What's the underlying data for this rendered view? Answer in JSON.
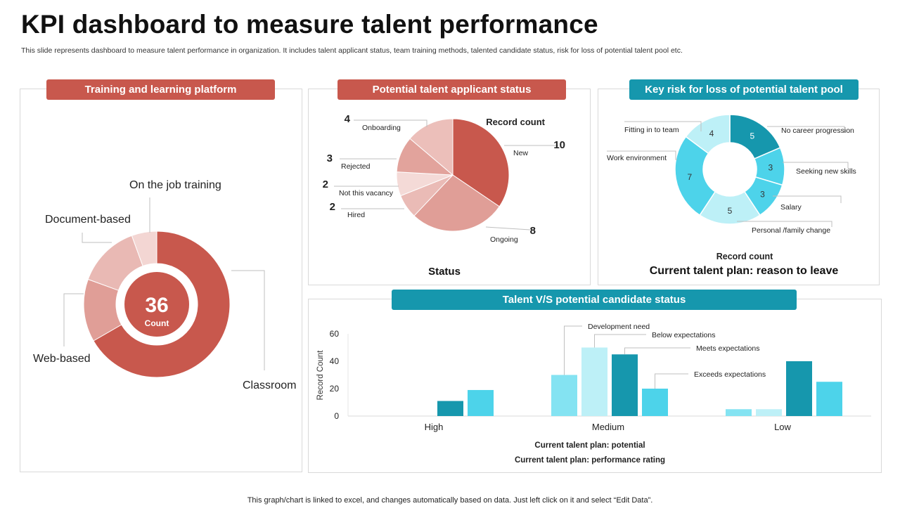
{
  "page": {
    "title": "KPI dashboard to measure talent performance",
    "subtitle": "This slide represents dashboard to measure talent performance in organization. It includes talent applicant status, team training methods, talented candidate status, risk for loss of potential talent pool etc.",
    "footer": "This graph/chart is linked to excel,  and changes automatically based on data. Just left click on it and select “Edit Data”."
  },
  "colors": {
    "red": "#c8584d",
    "teal": "#1697ad",
    "red_shades": [
      "#c8584d",
      "#e09e97",
      "#e9b9b4",
      "#f3d6d3"
    ],
    "teal_shades": [
      "#1697ad",
      "#4dd3ea",
      "#bdf0f7",
      "#84e3f2"
    ]
  },
  "panels": {
    "training": {
      "header": "Training and learning platform"
    },
    "applicant": {
      "header": "Potential talent applicant status"
    },
    "risk": {
      "header": "Key risk for loss of potential talent pool"
    },
    "candidate": {
      "header": "Talent V/S potential candidate status"
    }
  },
  "chart_data": [
    {
      "id": "training",
      "type": "pie",
      "style": "donut",
      "center_value": "36",
      "center_label": "Count",
      "slices": [
        {
          "label": "Classroom",
          "value": 24
        },
        {
          "label": "Web-based",
          "value": 5
        },
        {
          "label": "Document-based",
          "value": 5
        },
        {
          "label": "On the job training",
          "value": 2
        }
      ]
    },
    {
      "id": "applicant",
      "type": "pie",
      "title": "Record count",
      "xlabel": "Status",
      "slices": [
        {
          "label": "New",
          "value": 10
        },
        {
          "label": "Ongoing",
          "value": 8
        },
        {
          "label": "Hired",
          "value": 2
        },
        {
          "label": "Not this vacancy",
          "value": 2
        },
        {
          "label": "Rejected",
          "value": 3
        },
        {
          "label": "Onboarding",
          "value": 4
        }
      ]
    },
    {
      "id": "risk",
      "type": "pie",
      "style": "donut",
      "title": "Record count",
      "xlabel": "Current talent plan: reason to leave",
      "slices": [
        {
          "label": "No career progression",
          "value": 5
        },
        {
          "label": "Seeking new skills",
          "value": 3
        },
        {
          "label": "Salary",
          "value": 3
        },
        {
          "label": "Personal /family change",
          "value": 5
        },
        {
          "label": "Work environment",
          "value": 7
        },
        {
          "label": "Fitting in to team",
          "value": 4
        }
      ]
    },
    {
      "id": "candidate",
      "type": "bar",
      "categories": [
        "High",
        "Medium",
        "Low"
      ],
      "series": [
        {
          "name": "Development need",
          "values": [
            0,
            30,
            5
          ]
        },
        {
          "name": "Below expectations",
          "values": [
            0,
            50,
            5
          ]
        },
        {
          "name": "Meets expectations",
          "values": [
            11,
            45,
            40
          ]
        },
        {
          "name": "Exceeds expectations",
          "values": [
            19,
            20,
            25
          ]
        }
      ],
      "ylabel": "Record Count",
      "xlabel": "Current talent plan: potential",
      "xlabel2": "Current talent plan: performance rating",
      "yticks": [
        "0",
        "20",
        "40",
        "60"
      ],
      "ylim": [
        0,
        60
      ]
    }
  ]
}
